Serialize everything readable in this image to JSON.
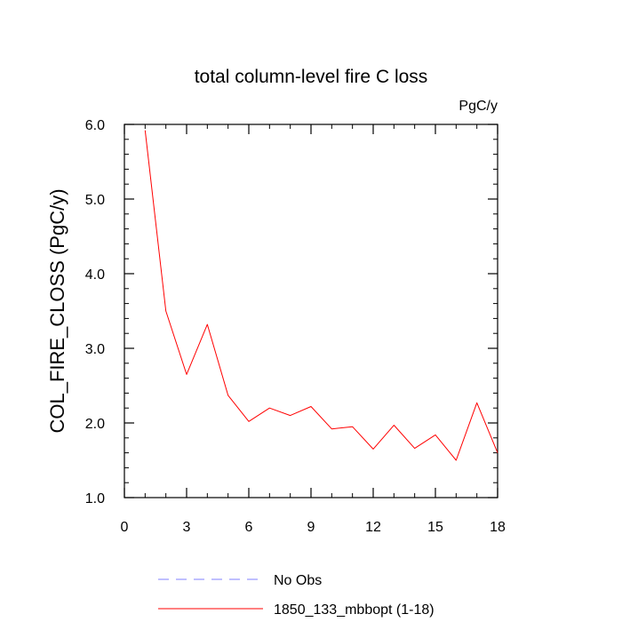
{
  "chart_data": {
    "type": "line",
    "title": "total column-level fire C loss",
    "units_label": "PgC/y",
    "xlabel": "",
    "ylabel": "COL_FIRE_CLOSS  (PgC/y)",
    "xlim": [
      0,
      18
    ],
    "ylim": [
      1.0,
      6.0
    ],
    "xticks": [
      0,
      3,
      6,
      9,
      12,
      15,
      18
    ],
    "xtick_labels": [
      "0",
      "3",
      "6",
      "9",
      "12",
      "15",
      "18"
    ],
    "yticks": [
      1.0,
      2.0,
      3.0,
      4.0,
      5.0,
      6.0
    ],
    "ytick_labels": [
      "1.0",
      "2.0",
      "3.0",
      "4.0",
      "5.0",
      "6.0"
    ],
    "x_minor_step": 1,
    "y_minor_step": 0.2,
    "grid": false,
    "legend_position": "bottom",
    "series": [
      {
        "name": "1850_133_mbbopt (1-18)",
        "color": "#ff0000",
        "dash": "solid",
        "x": [
          1,
          2,
          3,
          4,
          5,
          6,
          7,
          8,
          9,
          10,
          11,
          12,
          13,
          14,
          15,
          16,
          17,
          18
        ],
        "y": [
          5.92,
          3.5,
          2.65,
          3.32,
          2.37,
          2.02,
          2.2,
          2.1,
          2.22,
          1.92,
          1.95,
          1.65,
          1.97,
          1.66,
          1.84,
          1.5,
          2.27,
          1.6
        ]
      }
    ],
    "legend": [
      {
        "label": "No Obs",
        "color": "#8080ff",
        "dash": "dashed"
      },
      {
        "label": "1850_133_mbbopt (1-18)",
        "color": "#ff0000",
        "dash": "solid"
      }
    ]
  }
}
